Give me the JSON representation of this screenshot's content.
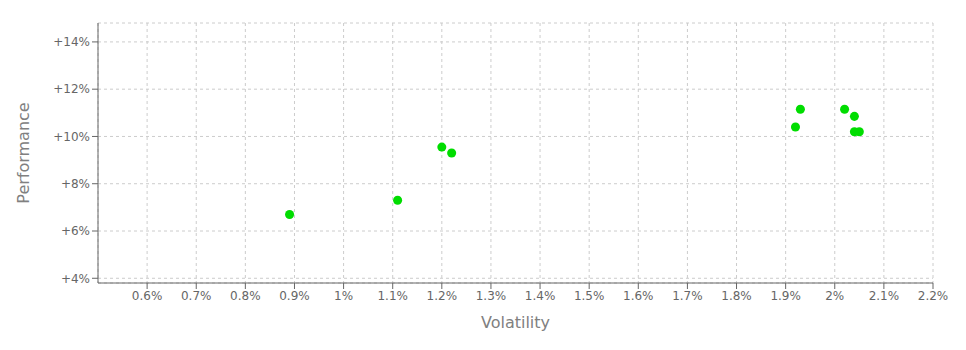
{
  "chart_data": {
    "type": "scatter",
    "xlabel": "Volatility",
    "ylabel": "Performance",
    "x": [
      0.0089,
      0.0111,
      0.012,
      0.0122,
      0.0192,
      0.0193,
      0.0202,
      0.0204,
      0.0204,
      0.0205
    ],
    "values": [
      0.067,
      0.073,
      0.0955,
      0.093,
      0.104,
      0.1115,
      0.1115,
      0.1085,
      0.102,
      0.102
    ],
    "color": "#00dd00",
    "xlim": [
      0.005,
      0.022
    ],
    "ylim": [
      0.038,
      0.148
    ],
    "xticks": [
      {
        "value": 0.006,
        "label": "0.6%"
      },
      {
        "value": 0.007,
        "label": "0.7%"
      },
      {
        "value": 0.008,
        "label": "0.8%"
      },
      {
        "value": 0.009,
        "label": "0.9%"
      },
      {
        "value": 0.01,
        "label": "1%"
      },
      {
        "value": 0.011,
        "label": "1.1%"
      },
      {
        "value": 0.012,
        "label": "1.2%"
      },
      {
        "value": 0.013,
        "label": "1.3%"
      },
      {
        "value": 0.014,
        "label": "1.4%"
      },
      {
        "value": 0.015,
        "label": "1.5%"
      },
      {
        "value": 0.016,
        "label": "1.6%"
      },
      {
        "value": 0.017,
        "label": "1.7%"
      },
      {
        "value": 0.018,
        "label": "1.8%"
      },
      {
        "value": 0.019,
        "label": "1.9%"
      },
      {
        "value": 0.02,
        "label": "2%"
      },
      {
        "value": 0.021,
        "label": "2.1%"
      },
      {
        "value": 0.022,
        "label": "2.2%"
      }
    ],
    "yticks": [
      {
        "value": 0.04,
        "label": "+4%"
      },
      {
        "value": 0.06,
        "label": "+6%"
      },
      {
        "value": 0.08,
        "label": "+8%"
      },
      {
        "value": 0.1,
        "label": "+10%"
      },
      {
        "value": 0.12,
        "label": "+12%"
      },
      {
        "value": 0.14,
        "label": "+14%"
      }
    ],
    "grid": true
  }
}
